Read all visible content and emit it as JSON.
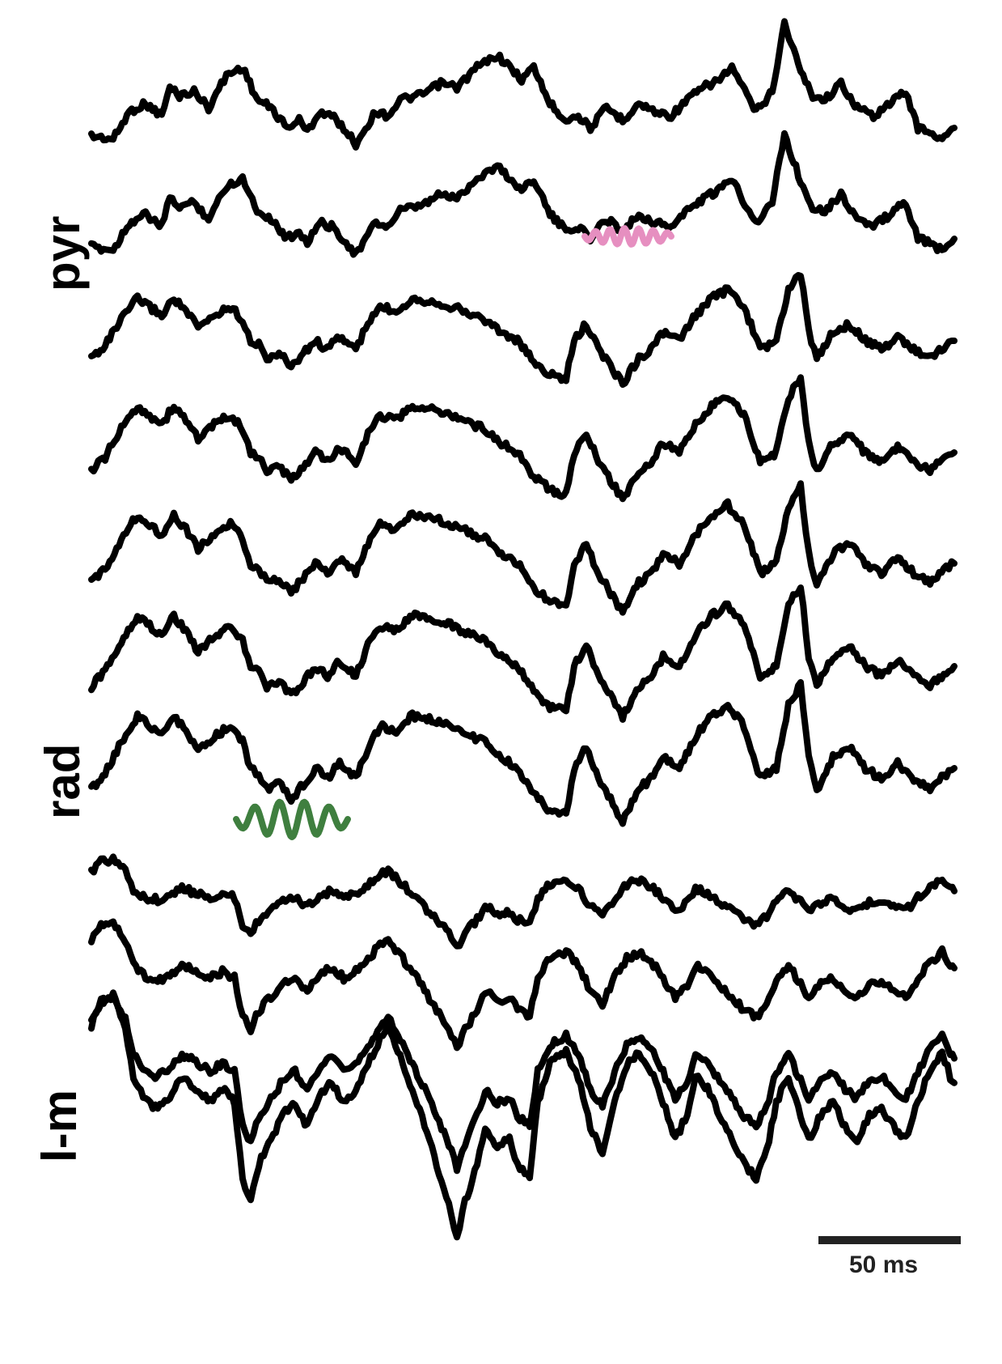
{
  "layer_labels": {
    "pyr": "pyr",
    "rad": "rad",
    "lm": "l-m"
  },
  "scale_bar": {
    "label": "50 ms"
  },
  "colors": {
    "trace": "#000000",
    "highlight_pyr": "#e68fc0",
    "highlight_rad": "#3f7f3f",
    "scale_bar": "#222222"
  },
  "traces": {
    "count": 11
  }
}
